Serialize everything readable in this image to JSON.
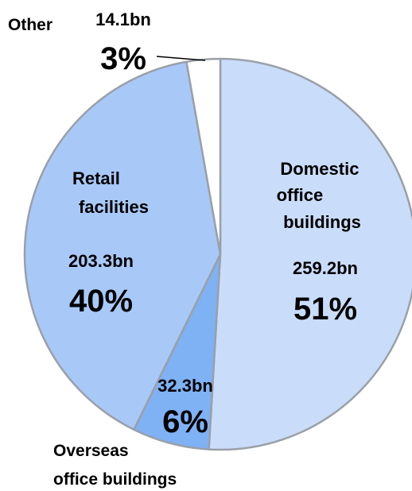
{
  "chart_data": {
    "type": "pie",
    "title": "",
    "slices": [
      {
        "key": "domestic",
        "name_lines": [
          "Domestic",
          "office",
          "buildings"
        ],
        "value": 259.2,
        "value_label": "259.2bn",
        "percent": 51,
        "percent_label": "51%",
        "color": "#c9ddfa"
      },
      {
        "key": "overseas",
        "name_lines": [
          "Overseas",
          "office buildings"
        ],
        "value": 32.3,
        "value_label": "32.3bn",
        "percent": 6,
        "percent_label": "6%",
        "color": "#7fb1f5"
      },
      {
        "key": "retail",
        "name_lines": [
          "Retail",
          "facilities"
        ],
        "value": 203.3,
        "value_label": "203.3bn",
        "percent": 40,
        "percent_label": "40%",
        "color": "#a8c9f8"
      },
      {
        "key": "other",
        "name_lines": [
          "Other"
        ],
        "value": 14.1,
        "value_label": "14.1bn",
        "percent": 3,
        "percent_label": "3%",
        "color": "#ffffff"
      }
    ],
    "start_angle_deg": 0,
    "direction": "clockwise",
    "border_color": "#9aa0a8"
  }
}
